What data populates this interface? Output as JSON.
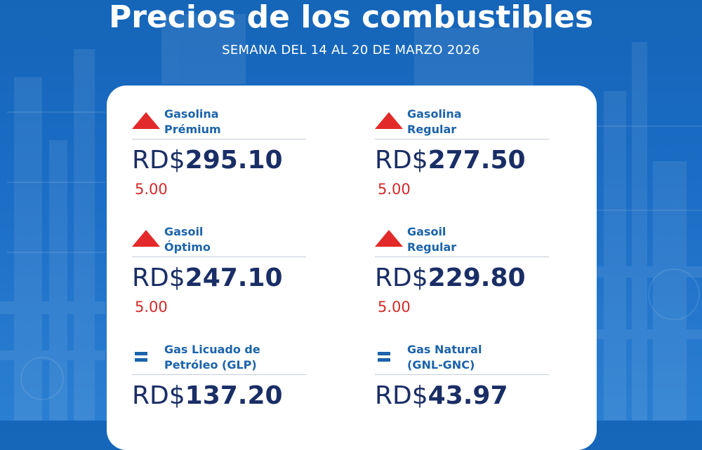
{
  "header": {
    "title": "Precios de los combustibles",
    "subtitle": "SEMANA DEL 14 AL 20 DE MARZO 2026"
  },
  "colors": {
    "background": "#1a6cc4",
    "card": "#ffffff",
    "name_text": "#1b63ab",
    "price_text": "#1a2e66",
    "change_text": "#d32a2a",
    "up_indicator": "#e22a2a",
    "equal_indicator": "#1b63ab"
  },
  "fuels": [
    {
      "name_line1": "Gasolina",
      "name_line2": "Prémium",
      "currency": "RD$",
      "price": "295.10",
      "change": "5.00",
      "indicator": "triangle-up-icon"
    },
    {
      "name_line1": "Gasolina",
      "name_line2": "Regular",
      "currency": "RD$",
      "price": "277.50",
      "change": "5.00",
      "indicator": "triangle-up-icon"
    },
    {
      "name_line1": "Gasoil",
      "name_line2": "Óptimo",
      "currency": "RD$",
      "price": "247.10",
      "change": "5.00",
      "indicator": "triangle-up-icon"
    },
    {
      "name_line1": "Gasoil",
      "name_line2": "Regular",
      "currency": "RD$",
      "price": "229.80",
      "change": "5.00",
      "indicator": "triangle-up-icon"
    },
    {
      "name_line1": "Gas Licuado de",
      "name_line2": "Petróleo (GLP)",
      "currency": "RD$",
      "price": "137.20",
      "change": "",
      "indicator": "equal-icon"
    },
    {
      "name_line1": "Gas Natural",
      "name_line2": "(GNL-GNC)",
      "currency": "RD$",
      "price": "43.97",
      "change": "",
      "indicator": "equal-icon"
    }
  ]
}
